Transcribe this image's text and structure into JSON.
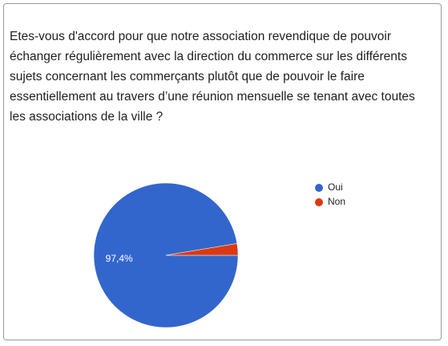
{
  "chart_data": {
    "type": "pie",
    "title": "Etes-vous d'accord pour que notre association revendique de pouvoir échanger régulièrement avec la direction du commerce sur les différents sujets concernant les commerçants plutôt que de pouvoir le faire essentiellement au travers d’une réunion mensuelle se tenant avec toutes les associations de la ville ?",
    "categories": [
      "Oui",
      "Non"
    ],
    "values": [
      97.4,
      2.6
    ],
    "value_labels": [
      "97,4%",
      null
    ],
    "colors": [
      "#3366cc",
      "#dc3912"
    ],
    "legend": "right"
  }
}
